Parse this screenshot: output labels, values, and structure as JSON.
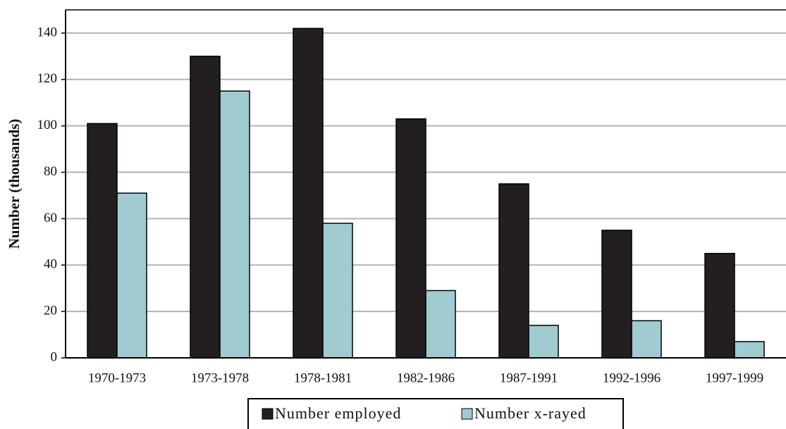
{
  "chart_data": {
    "type": "bar",
    "y_label": "Number (thousands)",
    "categories": [
      "1970-1973",
      "1973-1978",
      "1978-1981",
      "1982-1986",
      "1987-1991",
      "1992-1996",
      "1997-1999"
    ],
    "series": [
      {
        "name": "Number employed",
        "color": "#231f20",
        "values": [
          101,
          130,
          142,
          103,
          75,
          55,
          45
        ]
      },
      {
        "name": "Number x-rayed",
        "color": "#a0cbd0",
        "values": [
          71,
          115,
          58,
          29,
          14,
          16,
          7
        ]
      }
    ],
    "ylim": [
      0,
      150
    ],
    "yticks": [
      0,
      20,
      40,
      60,
      80,
      100,
      120,
      140
    ],
    "grid": true,
    "legend": "bottom"
  }
}
